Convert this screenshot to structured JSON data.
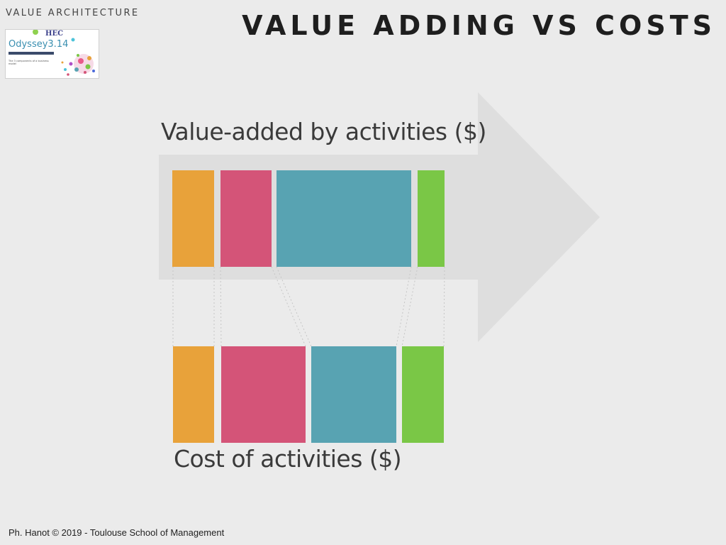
{
  "header": {
    "section": "VALUE ARCHITECTURE",
    "title": "VALUE ADDING VS COSTS"
  },
  "logo": {
    "brand": "HEC",
    "name": "Odyssey3.14",
    "subtitle": "The 3 components of a business model"
  },
  "diagram": {
    "top_label": "Value-added by activities ($)",
    "bottom_label": "Cost of activities ($)",
    "activity_colors": [
      "#e8a23a",
      "#d45478",
      "#58a3b2",
      "#7ac746"
    ],
    "arrow_color": "#dcdcdc"
  },
  "footer": {
    "credit": "Ph. Hanot © 2019  -  Toulouse School of Management"
  }
}
